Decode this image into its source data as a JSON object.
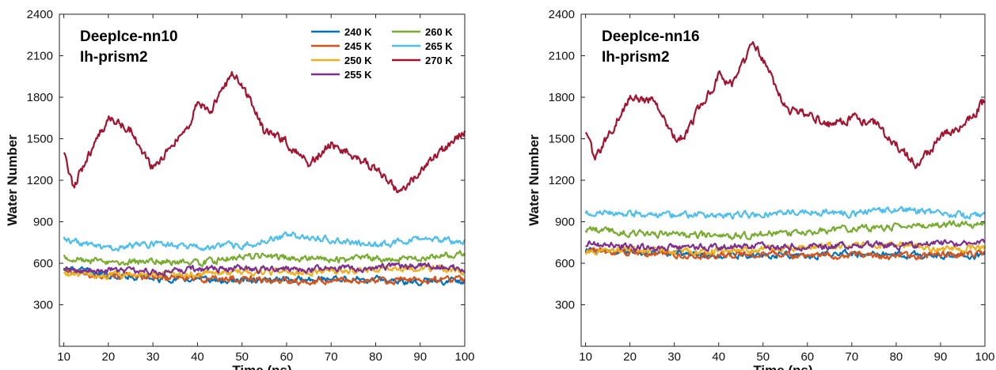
{
  "chart_data": [
    {
      "type": "line",
      "annotation": [
        "DeepIce-nn10",
        "Ih-prism2"
      ],
      "xlabel": "Time (ns)",
      "ylabel": "Water Number",
      "xlim": [
        9,
        100
      ],
      "ylim": [
        0,
        2400
      ],
      "xticks": [
        10,
        20,
        30,
        40,
        50,
        60,
        70,
        80,
        90,
        100
      ],
      "yticks": [
        300,
        600,
        900,
        1200,
        1500,
        1800,
        2100,
        2400
      ],
      "grid": false,
      "legend": "top-right",
      "series": [
        {
          "name": "240 K",
          "color": "#0072BD",
          "x": [
            10,
            20,
            30,
            40,
            50,
            60,
            70,
            80,
            90,
            100
          ],
          "y": [
            560,
            520,
            490,
            480,
            470,
            480,
            490,
            480,
            470,
            480
          ]
        },
        {
          "name": "245 K",
          "color": "#D95319",
          "x": [
            10,
            20,
            30,
            40,
            50,
            60,
            70,
            80,
            90,
            100
          ],
          "y": [
            540,
            500,
            500,
            490,
            490,
            470,
            480,
            470,
            480,
            480
          ]
        },
        {
          "name": "250 K",
          "color": "#EDB120",
          "x": [
            10,
            20,
            30,
            40,
            50,
            60,
            70,
            80,
            90,
            100
          ],
          "y": [
            520,
            510,
            520,
            530,
            540,
            530,
            540,
            560,
            570,
            540
          ]
        },
        {
          "name": "255 K",
          "color": "#7E2F8E",
          "x": [
            10,
            20,
            30,
            40,
            50,
            60,
            70,
            80,
            90,
            100
          ],
          "y": [
            550,
            550,
            540,
            560,
            560,
            550,
            560,
            570,
            580,
            560
          ]
        },
        {
          "name": "260 K",
          "color": "#77AC30",
          "x": [
            10,
            20,
            30,
            40,
            50,
            60,
            70,
            80,
            90,
            100
          ],
          "y": [
            650,
            600,
            620,
            600,
            650,
            640,
            620,
            640,
            630,
            680
          ]
        },
        {
          "name": "265 K",
          "color": "#4DBEEE",
          "x": [
            10,
            20,
            30,
            40,
            50,
            60,
            70,
            80,
            90,
            100
          ],
          "y": [
            780,
            700,
            740,
            720,
            730,
            800,
            770,
            730,
            780,
            750
          ]
        },
        {
          "name": "270 K",
          "color": "#A2142F",
          "x": [
            10,
            12,
            20,
            25,
            30,
            38,
            40,
            43,
            48,
            50,
            55,
            60,
            65,
            70,
            75,
            80,
            85,
            90,
            95,
            100
          ],
          "y": [
            1380,
            1150,
            1650,
            1560,
            1280,
            1600,
            1780,
            1700,
            1970,
            1900,
            1550,
            1480,
            1320,
            1460,
            1380,
            1280,
            1120,
            1250,
            1420,
            1550
          ]
        }
      ]
    },
    {
      "type": "line",
      "annotation": [
        "DeepIce-nn16",
        "Ih-prism2"
      ],
      "xlabel": "Time (ns)",
      "ylabel": "Water Number",
      "xlim": [
        9,
        100
      ],
      "ylim": [
        0,
        2400
      ],
      "xticks": [
        10,
        20,
        30,
        40,
        50,
        60,
        70,
        80,
        90,
        100
      ],
      "yticks": [
        300,
        600,
        900,
        1200,
        1500,
        1800,
        2100,
        2400
      ],
      "grid": false,
      "series": [
        {
          "name": "240 K",
          "color": "#0072BD",
          "x": [
            10,
            20,
            30,
            40,
            50,
            60,
            70,
            80,
            90,
            100
          ],
          "y": [
            700,
            680,
            670,
            660,
            660,
            660,
            670,
            660,
            650,
            660
          ]
        },
        {
          "name": "245 K",
          "color": "#D95319",
          "x": [
            10,
            20,
            30,
            40,
            50,
            60,
            70,
            80,
            90,
            100
          ],
          "y": [
            690,
            670,
            660,
            660,
            670,
            650,
            660,
            650,
            660,
            670
          ]
        },
        {
          "name": "250 K",
          "color": "#EDB120",
          "x": [
            10,
            20,
            30,
            40,
            50,
            60,
            70,
            80,
            90,
            100
          ],
          "y": [
            680,
            700,
            690,
            690,
            700,
            720,
            730,
            740,
            700,
            720
          ]
        },
        {
          "name": "255 K",
          "color": "#7E2F8E",
          "x": [
            10,
            20,
            30,
            40,
            50,
            60,
            70,
            80,
            90,
            100
          ],
          "y": [
            740,
            720,
            710,
            720,
            720,
            720,
            730,
            730,
            740,
            750
          ]
        },
        {
          "name": "260 K",
          "color": "#77AC30",
          "x": [
            10,
            20,
            30,
            40,
            50,
            60,
            70,
            80,
            90,
            100
          ],
          "y": [
            850,
            820,
            810,
            800,
            810,
            830,
            850,
            860,
            880,
            880
          ]
        },
        {
          "name": "265 K",
          "color": "#4DBEEE",
          "x": [
            10,
            20,
            30,
            40,
            50,
            60,
            70,
            80,
            90,
            100
          ],
          "y": [
            970,
            960,
            950,
            940,
            960,
            980,
            960,
            990,
            960,
            940
          ]
        },
        {
          "name": "270 K",
          "color": "#A2142F",
          "x": [
            10,
            12,
            20,
            25,
            30,
            32,
            40,
            43,
            48,
            50,
            55,
            60,
            65,
            70,
            75,
            80,
            85,
            90,
            95,
            100
          ],
          "y": [
            1560,
            1350,
            1800,
            1780,
            1520,
            1520,
            1950,
            1900,
            2180,
            2080,
            1720,
            1680,
            1600,
            1650,
            1620,
            1450,
            1300,
            1520,
            1580,
            1780
          ]
        }
      ]
    }
  ]
}
